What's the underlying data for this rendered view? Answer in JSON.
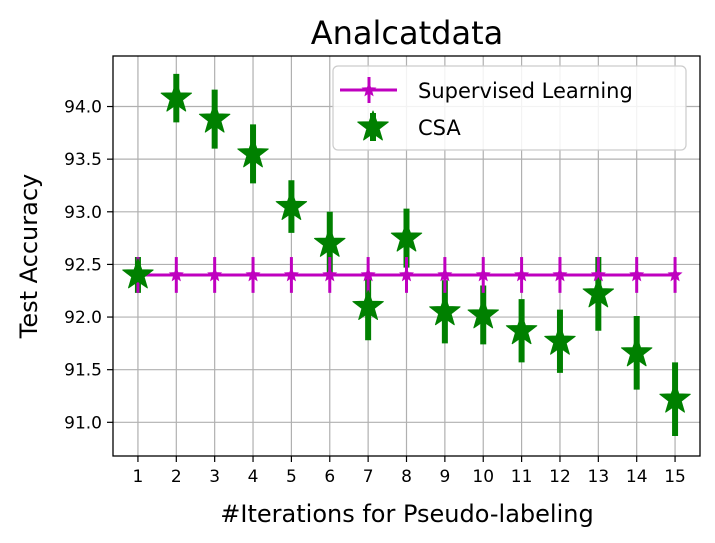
{
  "chart_data": {
    "type": "line",
    "title": "Analcatdata",
    "xlabel": "#Iterations for Pseudo-labeling",
    "ylabel": "Test Accuracy",
    "x": [
      1,
      2,
      3,
      4,
      5,
      6,
      7,
      8,
      9,
      10,
      11,
      12,
      13,
      14,
      15
    ],
    "xlim": [
      0.35,
      15.65
    ],
    "ylim": [
      90.68,
      94.48
    ],
    "yticks": [
      91.0,
      91.5,
      92.0,
      92.5,
      93.0,
      93.5,
      94.0
    ],
    "ytick_labels": [
      "91.0",
      "91.5",
      "92.0",
      "92.5",
      "93.0",
      "93.5",
      "94.0"
    ],
    "grid": true,
    "legend_position": "top-right",
    "series": [
      {
        "name": "Supervised Learning",
        "color": "#bf00bf",
        "style": "line-with-small-star-markers",
        "values": [
          92.4,
          92.4,
          92.4,
          92.4,
          92.4,
          92.4,
          92.4,
          92.4,
          92.4,
          92.4,
          92.4,
          92.4,
          92.4,
          92.4,
          92.4
        ],
        "errors": [
          0.17,
          0.17,
          0.17,
          0.17,
          0.17,
          0.17,
          0.17,
          0.17,
          0.17,
          0.17,
          0.17,
          0.17,
          0.17,
          0.17,
          0.17
        ]
      },
      {
        "name": "CSA",
        "color": "#008000",
        "style": "large-star-markers",
        "values": [
          92.4,
          94.08,
          93.88,
          93.55,
          93.05,
          92.7,
          92.1,
          92.75,
          92.05,
          92.02,
          91.87,
          91.77,
          92.22,
          91.66,
          91.22
        ],
        "errors": [
          0.17,
          0.23,
          0.28,
          0.28,
          0.25,
          0.3,
          0.32,
          0.28,
          0.3,
          0.28,
          0.3,
          0.3,
          0.35,
          0.35,
          0.35
        ]
      }
    ]
  }
}
